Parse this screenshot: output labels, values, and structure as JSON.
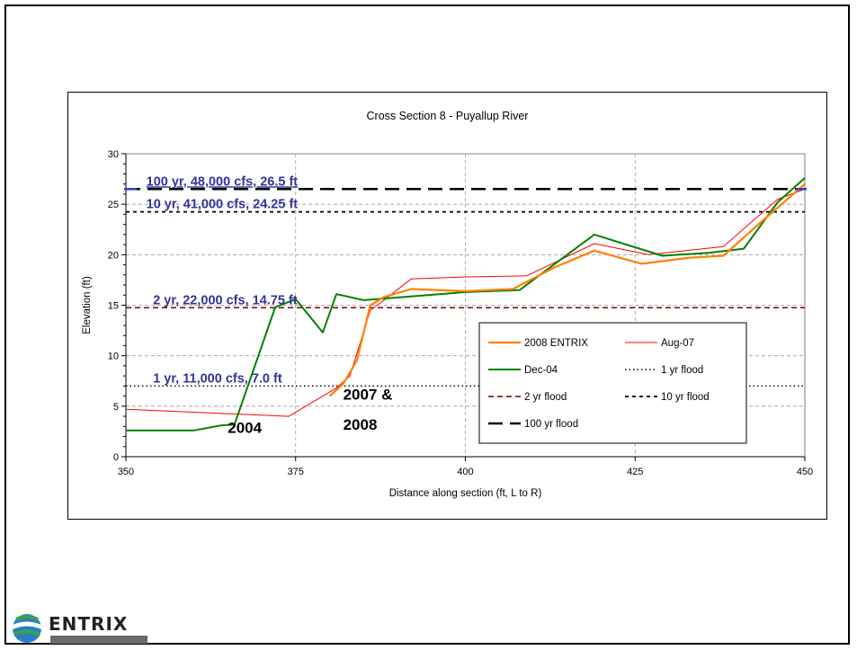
{
  "brand": {
    "name": "ENTRIX"
  },
  "chart_data": {
    "type": "line",
    "title": "Cross Section 8 - Puyallup River",
    "xlabel": "Distance along section (ft, L to R)",
    "ylabel": "Elevation (ft)",
    "xlim": [
      350,
      450
    ],
    "ylim": [
      0,
      30
    ],
    "xticks": [
      "350",
      "375",
      "400",
      "425",
      "450"
    ],
    "yticks": [
      "0",
      "5",
      "10",
      "15",
      "20",
      "25",
      "30"
    ],
    "grid": true,
    "legend_position": "lower-right",
    "series": [
      {
        "name": "2008 ENTRIX",
        "color": "#ff8000",
        "style": "solid",
        "width": 2.2,
        "x": [
          380,
          382,
          384,
          386,
          388,
          392,
          400,
          407,
          413,
          419,
          426,
          433,
          438,
          444,
          450
        ],
        "y": [
          6.0,
          7.2,
          9.5,
          15.0,
          15.8,
          16.6,
          16.4,
          16.6,
          18.7,
          20.4,
          19.1,
          19.7,
          19.9,
          23.5,
          27.0
        ]
      },
      {
        "name": "Aug-07",
        "color": "#ff0000",
        "style": "solid",
        "width": 1,
        "x": [
          350,
          374,
          381,
          383,
          386,
          388,
          392,
          400,
          409,
          419,
          427,
          438,
          446,
          450
        ],
        "y": [
          4.7,
          4.0,
          6.8,
          8.0,
          14.5,
          15.5,
          17.6,
          17.8,
          17.9,
          21.1,
          20.0,
          20.8,
          25.5,
          26.5
        ]
      },
      {
        "name": "Dec-04",
        "color": "#008000",
        "style": "solid",
        "width": 2,
        "x": [
          350,
          360,
          364,
          366,
          372,
          375,
          379,
          381,
          385,
          400,
          408,
          419,
          429,
          436,
          441,
          446,
          450
        ],
        "y": [
          2.6,
          2.6,
          3.1,
          3.2,
          14.8,
          15.6,
          12.3,
          16.1,
          15.5,
          16.3,
          16.5,
          22.0,
          19.9,
          20.2,
          20.6,
          25.2,
          27.6
        ]
      },
      {
        "name": "1 yr flood",
        "color": "#000000",
        "style": "dot",
        "width": 1.5,
        "x": [
          350,
          450
        ],
        "y": [
          7.0,
          7.0
        ]
      },
      {
        "name": "2 yr flood",
        "color": "#800000",
        "style": "dash",
        "width": 1.5,
        "x": [
          350,
          450
        ],
        "y": [
          14.75,
          14.75
        ]
      },
      {
        "name": "10 yr flood",
        "color": "#000000",
        "style": "densedash",
        "width": 1.8,
        "x": [
          350,
          450
        ],
        "y": [
          24.25,
          24.25
        ]
      },
      {
        "name": "100 yr flood",
        "color": "#000000",
        "style": "longdash",
        "width": 2.5,
        "x": [
          350,
          450
        ],
        "y": [
          26.5,
          26.5
        ]
      }
    ],
    "annotations": [
      {
        "text": "100 yr, 48,000 cfs, 26.5 ft",
        "x": 353,
        "y": 26.5,
        "color": "#333399",
        "size": 14.5,
        "underline": true,
        "bold": true
      },
      {
        "text": "10 yr, 41,000 cfs, 24.25 ft",
        "x": 353,
        "y": 24.25,
        "color": "#333399",
        "size": 14.5,
        "underline": false,
        "bold": true
      },
      {
        "text": "2 yr, 22,000 cfs, 14.75 ft",
        "x": 354,
        "y": 14.75,
        "color": "#333399",
        "size": 14.5,
        "underline": false,
        "bold": true
      },
      {
        "text": "1 yr, 11,000 cfs, 7.0 ft",
        "x": 354,
        "y": 7.0,
        "color": "#333399",
        "size": 14.5,
        "underline": false,
        "bold": true
      },
      {
        "text": "2004",
        "x": 365,
        "y": 2.0,
        "color": "#000000",
        "size": 17,
        "underline": false,
        "bold": true
      },
      {
        "text": "2007 &",
        "x": 382,
        "y": 5.3,
        "color": "#000000",
        "size": 17,
        "underline": false,
        "bold": true
      },
      {
        "text": "2008",
        "x": 382,
        "y": 2.3,
        "color": "#000000",
        "size": 17,
        "underline": false,
        "bold": true
      }
    ]
  }
}
